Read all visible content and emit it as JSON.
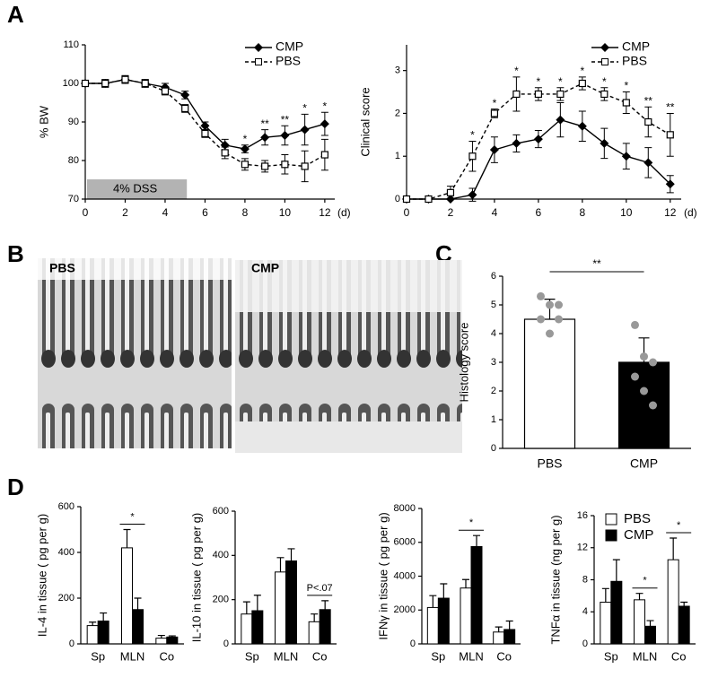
{
  "panels": {
    "a": "A",
    "b": "B",
    "c": "C",
    "d": "D"
  },
  "images": [
    {
      "label": "PBS"
    },
    {
      "label": "CMP"
    }
  ],
  "chart_data": [
    {
      "type": "line",
      "ylabel": "% BW",
      "xunit": "(d)",
      "xlim": [
        0,
        12.5
      ],
      "xticks": [
        0,
        2,
        4,
        6,
        8,
        10,
        12
      ],
      "ylim": [
        70,
        110
      ],
      "yticks": [
        70,
        80,
        90,
        100,
        110
      ],
      "legend": true,
      "x": [
        0,
        1,
        2,
        3,
        4,
        5,
        6,
        7,
        8,
        9,
        10,
        11,
        12
      ],
      "dss": {
        "text": "4% DSS",
        "x": [
          0,
          5
        ]
      },
      "series": [
        {
          "name": "CMP",
          "color": "#000000",
          "marker": "diamond",
          "dashed": false,
          "values": [
            100,
            100,
            101,
            100,
            99,
            97,
            89,
            84,
            83,
            86,
            86.5,
            88,
            89.5
          ],
          "errors": [
            0,
            1,
            1,
            1,
            1,
            1,
            1,
            1.5,
            1,
            2,
            2.5,
            4,
            3
          ]
        },
        {
          "name": "PBS",
          "color": "#000000",
          "marker": "square",
          "dashed": true,
          "values": [
            100,
            100,
            101,
            100,
            98,
            93.5,
            87,
            82,
            79,
            78.5,
            79,
            78.5,
            81.5
          ],
          "errors": [
            0,
            1,
            1,
            1,
            1,
            1,
            1,
            1.5,
            1.5,
            1.5,
            2.5,
            4,
            4
          ]
        }
      ],
      "annotations": [
        {
          "x": 8,
          "text": "*"
        },
        {
          "x": 9,
          "text": "**"
        },
        {
          "x": 10,
          "text": "**"
        },
        {
          "x": 11,
          "text": "*"
        },
        {
          "x": 12,
          "text": "*"
        }
      ]
    },
    {
      "type": "line",
      "ylabel": "Clinical score",
      "xunit": "(d)",
      "xlim": [
        0,
        12.5
      ],
      "xticks": [
        0,
        2,
        4,
        6,
        8,
        10,
        12
      ],
      "ylim": [
        0,
        3.6
      ],
      "yticks": [
        0,
        1,
        2,
        3
      ],
      "legend": true,
      "x": [
        0,
        1,
        2,
        3,
        4,
        5,
        6,
        7,
        8,
        9,
        10,
        11,
        12
      ],
      "series": [
        {
          "name": "CMP",
          "color": "#000000",
          "marker": "diamond",
          "dashed": false,
          "values": [
            0,
            0,
            0,
            0.1,
            1.15,
            1.3,
            1.4,
            1.85,
            1.7,
            1.3,
            1.0,
            0.85,
            0.35
          ],
          "errors": [
            0,
            0,
            0,
            0.15,
            0.3,
            0.2,
            0.2,
            0.4,
            0.35,
            0.35,
            0.3,
            0.35,
            0.2
          ]
        },
        {
          "name": "PBS",
          "color": "#000000",
          "marker": "square",
          "dashed": true,
          "values": [
            0,
            0,
            0.15,
            1.0,
            2.0,
            2.45,
            2.45,
            2.45,
            2.7,
            2.45,
            2.25,
            1.8,
            1.5
          ],
          "errors": [
            0,
            0,
            0.15,
            0.35,
            0.1,
            0.4,
            0.15,
            0.15,
            0.15,
            0.15,
            0.25,
            0.35,
            0.5
          ]
        }
      ],
      "annotations": [
        {
          "x": 3,
          "text": "*"
        },
        {
          "x": 4,
          "text": "*"
        },
        {
          "x": 5,
          "text": "*"
        },
        {
          "x": 6,
          "text": "*"
        },
        {
          "x": 7,
          "text": "*"
        },
        {
          "x": 8,
          "text": "*"
        },
        {
          "x": 9,
          "text": "*"
        },
        {
          "x": 10,
          "text": "*"
        },
        {
          "x": 11,
          "text": "**"
        },
        {
          "x": 12,
          "text": "**"
        }
      ]
    },
    {
      "type": "bar",
      "ylabel": "Histology score",
      "ylim": [
        0,
        6
      ],
      "yticks": [
        0,
        1,
        2,
        3,
        4,
        5,
        6
      ],
      "categories": [
        "PBS",
        "CMP"
      ],
      "colors": [
        "#ffffff",
        "#000000"
      ],
      "point_color": "#999999",
      "values": [
        4.5,
        3.0
      ],
      "errors": [
        0.7,
        0.85
      ],
      "points": [
        [
          5.3,
          5.0,
          5.0,
          4.5,
          4.0,
          4.5
        ],
        [
          4.3,
          3.2,
          3.0,
          2.5,
          2.0,
          1.5
        ]
      ],
      "significance": {
        "text": "**"
      }
    },
    {
      "type": "grouped_bar",
      "ylabel": "IL-4 in tissue ( pg per g)",
      "ylim": [
        0,
        600
      ],
      "yticks": [
        0,
        200,
        400,
        600
      ],
      "categories": [
        "Sp",
        "MLN",
        "Co"
      ],
      "legend": false,
      "series": [
        {
          "name": "PBS",
          "color": "#ffffff",
          "values": [
            80,
            420,
            25
          ],
          "errors": [
            15,
            80,
            12
          ]
        },
        {
          "name": "CMP",
          "color": "#000000",
          "values": [
            100,
            150,
            30
          ],
          "errors": [
            35,
            50,
            5
          ]
        }
      ],
      "significance": [
        {
          "category": "MLN",
          "text": "*"
        }
      ]
    },
    {
      "type": "grouped_bar",
      "ylabel": "IL-10 in tissue ( pg per g)",
      "ylim": [
        0,
        600
      ],
      "yticks": [
        0,
        200,
        400,
        600
      ],
      "categories": [
        "Sp",
        "MLN",
        "Co"
      ],
      "legend": false,
      "series": [
        {
          "name": "PBS",
          "color": "#ffffff",
          "values": [
            135,
            325,
            100
          ],
          "errors": [
            55,
            65,
            35
          ]
        },
        {
          "name": "CMP",
          "color": "#000000",
          "values": [
            150,
            375,
            155
          ],
          "errors": [
            70,
            55,
            40
          ]
        }
      ],
      "significance": [
        {
          "category": "Co",
          "text": "P<.07"
        }
      ]
    },
    {
      "type": "grouped_bar",
      "ylabel": "IFNγ in tissue ( pg per g)",
      "ylim": [
        0,
        8000
      ],
      "yticks": [
        0,
        2000,
        4000,
        6000,
        8000
      ],
      "categories": [
        "Sp",
        "MLN",
        "Co"
      ],
      "legend": false,
      "series": [
        {
          "name": "PBS",
          "color": "#ffffff",
          "values": [
            2150,
            3300,
            700
          ],
          "errors": [
            700,
            500,
            300
          ]
        },
        {
          "name": "CMP",
          "color": "#000000",
          "values": [
            2700,
            5750,
            850
          ],
          "errors": [
            850,
            650,
            500
          ]
        }
      ],
      "significance": [
        {
          "category": "MLN",
          "text": "*"
        }
      ]
    },
    {
      "type": "grouped_bar",
      "ylabel": "TNFα in tissue (ng per g)",
      "ylim": [
        0,
        16
      ],
      "yticks": [
        0,
        4,
        8,
        12,
        16
      ],
      "categories": [
        "Sp",
        "MLN",
        "Co"
      ],
      "legend": true,
      "series": [
        {
          "name": "PBS",
          "color": "#ffffff",
          "values": [
            5.2,
            5.5,
            10.5
          ],
          "errors": [
            1.7,
            0.8,
            2.7
          ]
        },
        {
          "name": "CMP",
          "color": "#000000",
          "values": [
            7.8,
            2.2,
            4.7
          ],
          "errors": [
            2.7,
            0.7,
            0.5
          ]
        }
      ],
      "significance": [
        {
          "category": "MLN",
          "text": "*"
        },
        {
          "category": "Co",
          "text": "*"
        }
      ]
    }
  ]
}
